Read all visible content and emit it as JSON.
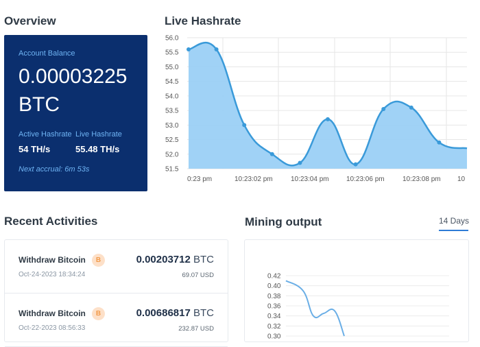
{
  "overview": {
    "title": "Overview",
    "balance_label": "Account Balance",
    "balance_value": "0.00003225",
    "balance_unit": "BTC",
    "active_hashrate_label": "Active Hashrate",
    "active_hashrate_value": "54 TH/s",
    "live_hashrate_label": "Live Hashrate",
    "live_hashrate_value": "55.48 TH/s",
    "next_accrual": "Next accrual: 6m 53s",
    "card_color": "#0b2f6e"
  },
  "live_hashrate": {
    "title": "Live Hashrate",
    "chart_data": {
      "type": "area",
      "y_ticks": [
        "56.0",
        "55.5",
        "55.0",
        "54.5",
        "54.0",
        "53.5",
        "53.0",
        "52.5",
        "52.0",
        "51.5"
      ],
      "ylim": [
        51.5,
        56.0
      ],
      "x_tick_labels": [
        "0:23 pm",
        "10:23:02 pm",
        "10:23:04 pm",
        "10:23:06 pm",
        "10:23:08 pm",
        "10"
      ],
      "series": [
        {
          "x": [
            0,
            1,
            2,
            3,
            4,
            5,
            6,
            7,
            8,
            9,
            10
          ],
          "values": [
            55.6,
            55.6,
            53.0,
            52.0,
            51.7,
            53.2,
            51.65,
            53.55,
            53.6,
            52.4,
            52.2
          ]
        }
      ],
      "grid": true,
      "fill_color": "#9bd0f5",
      "line_color": "#3a9ad9"
    }
  },
  "recent_activities": {
    "title": "Recent Activities",
    "items": [
      {
        "title": "Withdraw Bitcoin",
        "icon": "bitcoin-icon",
        "icon_glyph": "B",
        "date": "Oct-24-2023 18:34:24",
        "amount": "0.00203712",
        "unit": "BTC",
        "usd": "69.07 USD"
      },
      {
        "title": "Withdraw Bitcoin",
        "icon": "bitcoin-icon",
        "icon_glyph": "B",
        "date": "Oct-22-2023 08:56:33",
        "amount": "0.00686817",
        "unit": "BTC",
        "usd": "232.87 USD"
      }
    ]
  },
  "mining_output": {
    "title": "Mining output",
    "tab_label": "14 Days",
    "chart_data": {
      "type": "line",
      "y_ticks": [
        "0.42",
        "0.40",
        "0.38",
        "0.36",
        "0.34",
        "0.32",
        "0.30"
      ],
      "ylim": [
        0.3,
        0.42
      ],
      "series": [
        {
          "values": [
            0.41,
            0.39,
            0.34,
            0.345,
            0.35,
            0.3
          ]
        }
      ],
      "grid": true,
      "line_color": "#6aaee6"
    }
  }
}
